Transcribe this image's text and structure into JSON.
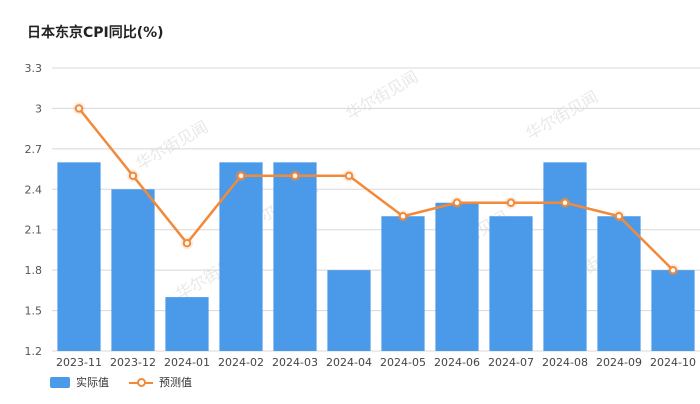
{
  "chart_data": {
    "type": "bar",
    "title": "日本东京CPI同比(%)",
    "categories": [
      "2023-11",
      "2023-12",
      "2024-01",
      "2024-02",
      "2024-03",
      "2024-04",
      "2024-05",
      "2024-06",
      "2024-07",
      "2024-08",
      "2024-09",
      "2024-10"
    ],
    "series": [
      {
        "name": "实际值",
        "type": "bar",
        "color": "#4a9ae9",
        "values": [
          2.6,
          2.4,
          1.6,
          2.6,
          2.6,
          1.8,
          2.2,
          2.3,
          2.2,
          2.6,
          2.2,
          1.8
        ]
      },
      {
        "name": "预测值",
        "type": "line",
        "color": "#f28a3b",
        "values": [
          3.0,
          2.5,
          2.0,
          2.5,
          2.5,
          2.5,
          2.2,
          2.3,
          2.3,
          2.3,
          2.2,
          1.8
        ]
      }
    ],
    "ylim": [
      1.2,
      3.3
    ],
    "yticks": [
      "1.2",
      "1.5",
      "1.8",
      "2.1",
      "2.4",
      "2.7",
      "3",
      "3.3"
    ],
    "xlabel": "",
    "ylabel": "",
    "grid": true,
    "legend_position": "bottom-left"
  },
  "watermark": "华尔街见闻"
}
